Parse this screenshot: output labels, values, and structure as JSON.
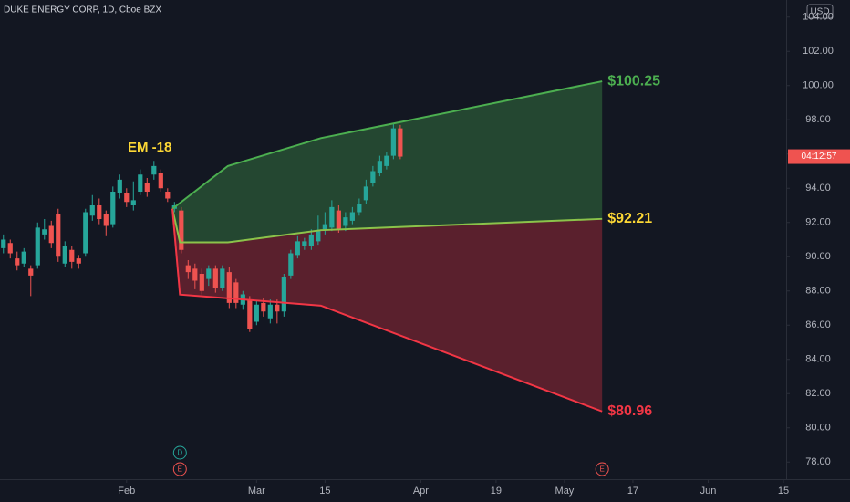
{
  "chart_data": {
    "type": "candlestick",
    "title": "DUKE ENERGY CORP, 1D, Cboe BZX",
    "currency": "USD",
    "annotation": "EM -18",
    "countdown": "04:12:57",
    "up_color": "#26a69a",
    "down_color": "#ef5350",
    "open": [
      90.5,
      90.8,
      89.9,
      89.6,
      89.3,
      89.5,
      91.3,
      91.8,
      92.5,
      89.6,
      90.4,
      89.9,
      90.2,
      92.4,
      93.0,
      92.5,
      91.9,
      93.7,
      93.7,
      93.0,
      93.8,
      94.3,
      94.8,
      94.9,
      93.8,
      92.8,
      92.7,
      89.5,
      89.3,
      89.0,
      88.7,
      89.3,
      88.2,
      89.1,
      88.5,
      87.2,
      87.5,
      86.2,
      87.3,
      86.4,
      87.2,
      86.8,
      88.9,
      90.1,
      90.6,
      90.6,
      90.9,
      91.6,
      91.7,
      92.7,
      91.8,
      92.1,
      92.6,
      93.3,
      94.3,
      94.9,
      95.3,
      95.9,
      97.5
    ],
    "high": [
      91.3,
      91.0,
      90.3,
      90.5,
      89.5,
      92.0,
      92.2,
      92.1,
      92.8,
      90.9,
      90.6,
      90.1,
      92.8,
      93.6,
      93.4,
      92.7,
      94.1,
      94.8,
      94.0,
      94.4,
      95.1,
      94.6,
      95.6,
      95.1,
      94.0,
      93.2,
      92.9,
      89.8,
      89.6,
      89.3,
      89.5,
      89.5,
      89.5,
      89.4,
      88.7,
      88.0,
      87.7,
      87.4,
      87.6,
      87.5,
      87.5,
      89.0,
      90.4,
      91.2,
      91.1,
      91.6,
      92.4,
      92.6,
      93.3,
      93.0,
      92.6,
      92.9,
      93.4,
      94.5,
      95.3,
      95.9,
      96.1,
      97.8,
      97.7
    ],
    "low": [
      90.2,
      89.9,
      89.2,
      89.4,
      87.7,
      89.3,
      91.0,
      90.5,
      89.7,
      89.4,
      89.3,
      89.3,
      90.0,
      92.1,
      91.9,
      91.2,
      91.7,
      93.4,
      92.9,
      92.7,
      93.6,
      93.5,
      94.5,
      93.8,
      93.2,
      92.6,
      90.2,
      88.7,
      88.1,
      87.8,
      88.3,
      87.9,
      88.0,
      87.0,
      87.0,
      86.9,
      85.6,
      86.0,
      86.5,
      86.1,
      86.1,
      86.5,
      88.7,
      89.9,
      90.4,
      90.4,
      90.7,
      91.3,
      91.5,
      91.4,
      91.5,
      91.9,
      92.4,
      93.1,
      94.1,
      94.7,
      95.1,
      95.7,
      95.7
    ],
    "close": [
      91.0,
      90.2,
      89.5,
      90.3,
      88.9,
      91.7,
      91.6,
      90.8,
      90.0,
      90.6,
      89.7,
      89.6,
      92.6,
      93.0,
      92.2,
      91.8,
      93.8,
      94.5,
      93.2,
      93.3,
      94.8,
      93.8,
      95.3,
      94.0,
      93.4,
      93.0,
      90.4,
      89.1,
      88.6,
      88.0,
      89.3,
      88.2,
      89.3,
      87.3,
      87.3,
      87.8,
      85.8,
      87.2,
      86.8,
      87.2,
      86.8,
      88.8,
      90.2,
      90.9,
      90.9,
      91.3,
      91.5,
      91.9,
      92.9,
      91.6,
      92.3,
      92.6,
      93.1,
      94.1,
      95.0,
      95.6,
      95.9,
      97.5,
      95.85
    ],
    "series": [
      {
        "color": "#4caf50",
        "x": [
          24.7,
          32.8,
          46.4,
          87.5
        ],
        "values": [
          92.8,
          95.3,
          96.93,
          100.25
        ],
        "end_label": "$100.25"
      },
      {
        "color": "#8bc34a",
        "x": [
          24.7,
          25.8,
          32.8,
          46.4,
          87.5
        ],
        "values": [
          92.8,
          90.84,
          90.84,
          91.55,
          92.21
        ],
        "end_label": "$92.21"
      },
      {
        "color": "#f23645",
        "x": [
          24.7,
          25.8,
          46.4,
          87.5
        ],
        "values": [
          92.8,
          87.79,
          87.14,
          80.96
        ],
        "end_label": "$80.96"
      }
    ],
    "events": [
      {
        "x": 25.8,
        "label": "D"
      },
      {
        "x": 25.8,
        "label": "E"
      },
      {
        "x": 87.5,
        "label": "E"
      }
    ],
    "xlim": [
      -0.5,
      114.4
    ],
    "xticks": [
      {
        "value": 18,
        "label": "Feb"
      },
      {
        "value": 37,
        "label": "Mar"
      },
      {
        "value": 47,
        "label": "15"
      },
      {
        "value": 61,
        "label": "Apr"
      },
      {
        "value": 72,
        "label": "19"
      },
      {
        "value": 82,
        "label": "May"
      },
      {
        "value": 92,
        "label": "17"
      },
      {
        "value": 103,
        "label": "Jun"
      },
      {
        "value": 114,
        "label": "15"
      }
    ],
    "ylim": [
      77,
      105
    ],
    "yticks": [
      {
        "value": 78,
        "label": "78.00"
      },
      {
        "value": 80,
        "label": "80.00"
      },
      {
        "value": 82,
        "label": "82.00"
      },
      {
        "value": 84,
        "label": "84.00"
      },
      {
        "value": 86,
        "label": "86.00"
      },
      {
        "value": 88,
        "label": "88.00"
      },
      {
        "value": 90,
        "label": "90.00"
      },
      {
        "value": 92,
        "label": "92.00"
      },
      {
        "value": 94,
        "label": "94.00"
      },
      {
        "value": 96,
        "label": "96.00"
      },
      {
        "value": 98,
        "label": "98.00"
      },
      {
        "value": 100,
        "label": "100.00"
      },
      {
        "value": 102,
        "label": "102.00"
      },
      {
        "value": 104,
        "label": "104.00"
      }
    ]
  }
}
